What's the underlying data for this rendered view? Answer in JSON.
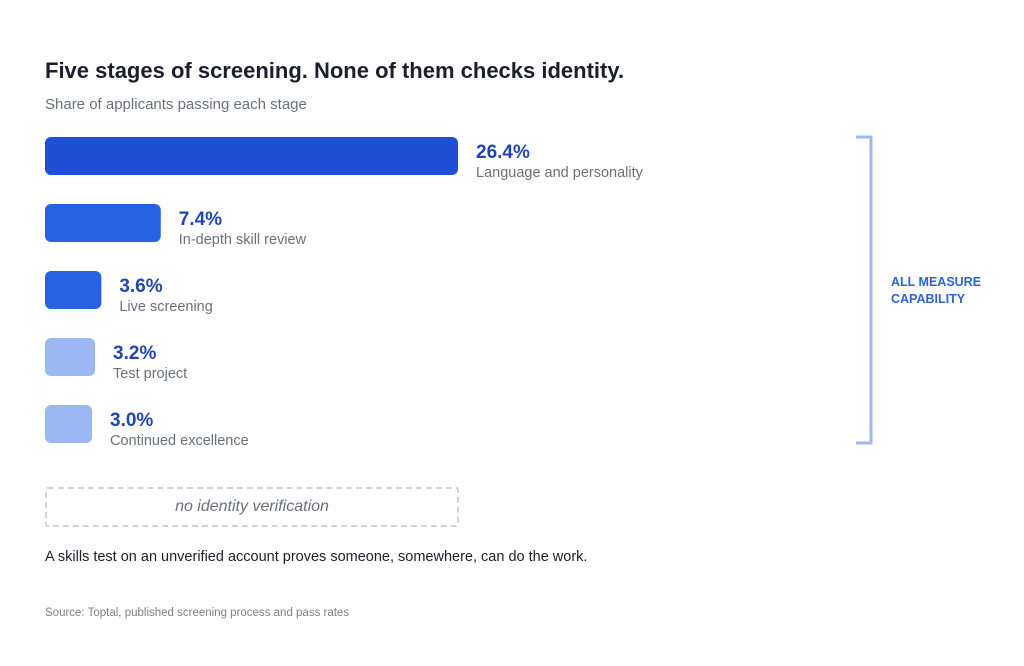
{
  "title": "Five stages of screening. None of them checks identity.",
  "subtitle": "Share of applicants passing each stage",
  "chart_data": {
    "type": "bar",
    "orientation": "horizontal",
    "value_suffix": "%",
    "categories": [
      "Language and personality",
      "In-depth skill review",
      "Live screening",
      "Test project",
      "Continued excellence"
    ],
    "values": [
      26.4,
      7.4,
      3.6,
      3.2,
      3.0
    ],
    "value_labels": [
      "26.4%",
      "7.4%",
      "3.6%",
      "3.2%",
      "3.0%"
    ],
    "bar_colors": [
      "#1f4fd6",
      "#2563e4",
      "#2563e4",
      "#9bb7f4",
      "#9bb7f4"
    ],
    "xlabel": "",
    "ylabel": "",
    "grid": false,
    "legend": false
  },
  "bracket_label_lines": [
    "ALL MEASURE",
    "CAPABILITY"
  ],
  "no_identity_text": "no identity verification",
  "footnote": "A skills test on an unverified account proves someone, somewhere, can do the work.",
  "source": "Source: Toptal, published screening process and pass rates",
  "colors": {
    "primary_bar": "#1f4fd6",
    "light_bar": "#9bb7f4",
    "value_text": "#1f45b8",
    "bracket": "#9bb7f4",
    "accent_text": "#2b63d9"
  }
}
